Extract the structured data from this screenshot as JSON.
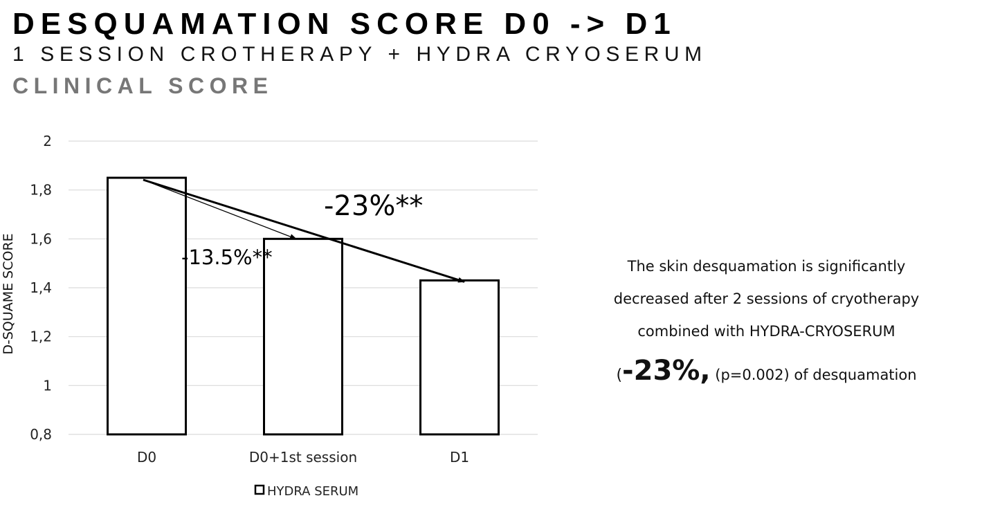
{
  "header": {
    "title": "DESQUAMATION SCORE D0 -> D1",
    "subtitle": "1 SESSION CROTHERAPY + HYDRA CRYOSERUM",
    "section": "CLINICAL SCORE"
  },
  "chart_data": {
    "type": "bar",
    "categories": [
      "D0",
      "D0+1st session",
      "D1"
    ],
    "series": [
      {
        "name": "HYDRA SERUM",
        "values": [
          1.85,
          1.6,
          1.43
        ]
      }
    ],
    "ylabel": "D-SQUAME SCORE",
    "xlabel": "",
    "ylim": [
      0.8,
      2
    ],
    "yticks": [
      0.8,
      1,
      1.2,
      1.4,
      1.6,
      1.8,
      2
    ],
    "ytick_labels": [
      "0,8",
      "1",
      "1,2",
      "1,4",
      "1,6",
      "1,8",
      "2"
    ],
    "grid": true,
    "legend": "bottom",
    "bar_fill": "#ffffff",
    "bar_stroke": "#000000",
    "grid_color": "#d9d9d9",
    "annotations": [
      {
        "text": "-23%**",
        "from": "D0",
        "to": "D1"
      },
      {
        "text": "-13.5%**",
        "from": "D0",
        "to": "D0+1st session"
      }
    ]
  },
  "note": {
    "line1": "The skin desquamation is significantly",
    "line2": "decreased after 2 sessions of cryotherapy",
    "line3": "combined with HYDRA-CRYOSERUM",
    "open_paren": "(",
    "highlight": "-23%,",
    "detail": "(p=0.002) of desquamation"
  }
}
